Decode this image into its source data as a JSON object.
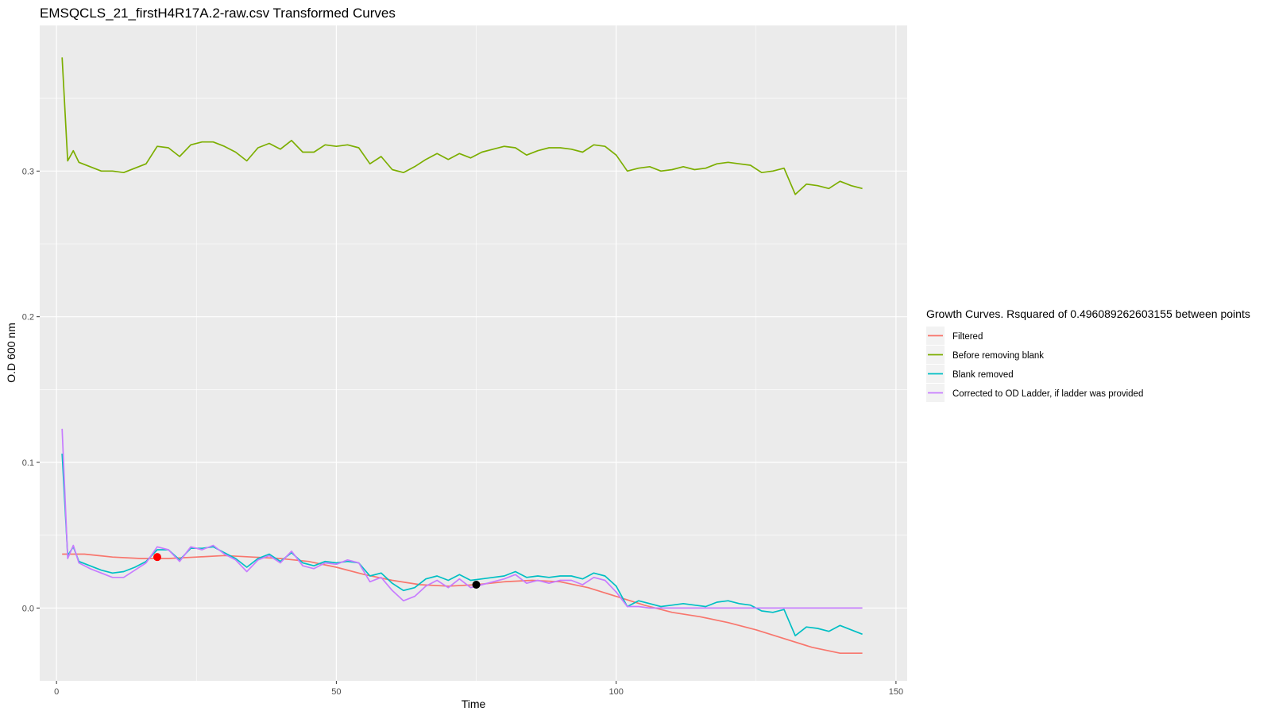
{
  "chart_data": {
    "type": "line",
    "title": "EMSQCLS_21_firstH4R17A.2-raw.csv Transformed Curves",
    "xlabel": "Time",
    "ylabel": "O.D 600 nm",
    "xlim": [
      -3,
      152
    ],
    "ylim": [
      -0.05,
      0.4
    ],
    "x_ticks": [
      0,
      50,
      100,
      150
    ],
    "x_tick_labels": [
      "0",
      "50",
      "100",
      "150"
    ],
    "y_ticks": [
      0.0,
      0.1,
      0.2,
      0.3
    ],
    "y_tick_labels": [
      "0.0",
      "0.1",
      "0.2",
      "0.3"
    ],
    "grid": true,
    "legend_position": "right",
    "legend_title": "Growth Curves. Rsquared of 0.496089262603155 between points",
    "series": [
      {
        "name": "Filtered",
        "color": "#F8766D",
        "x": [
          1,
          5,
          10,
          15,
          20,
          25,
          30,
          35,
          40,
          45,
          50,
          55,
          60,
          65,
          70,
          75,
          80,
          85,
          90,
          95,
          100,
          105,
          110,
          115,
          120,
          125,
          130,
          135,
          140,
          144
        ],
        "y": [
          0.037,
          0.037,
          0.035,
          0.034,
          0.034,
          0.035,
          0.036,
          0.035,
          0.034,
          0.032,
          0.028,
          0.023,
          0.019,
          0.016,
          0.015,
          0.016,
          0.018,
          0.019,
          0.018,
          0.014,
          0.008,
          0.002,
          -0.003,
          -0.006,
          -0.01,
          -0.015,
          -0.021,
          -0.027,
          -0.031,
          -0.031
        ]
      },
      {
        "name": "Before removing blank",
        "color": "#7CAE00",
        "x": [
          1,
          2,
          3,
          4,
          6,
          8,
          10,
          12,
          14,
          16,
          18,
          20,
          22,
          24,
          26,
          28,
          30,
          32,
          34,
          36,
          38,
          40,
          42,
          44,
          46,
          48,
          50,
          52,
          54,
          56,
          58,
          60,
          62,
          64,
          66,
          68,
          70,
          72,
          74,
          76,
          78,
          80,
          82,
          84,
          86,
          88,
          90,
          92,
          94,
          96,
          98,
          100,
          102,
          104,
          106,
          108,
          110,
          112,
          114,
          116,
          118,
          120,
          122,
          124,
          126,
          128,
          130,
          132,
          134,
          136,
          138,
          140,
          142,
          144
        ],
        "y": [
          0.378,
          0.307,
          0.314,
          0.306,
          0.303,
          0.3,
          0.3,
          0.299,
          0.302,
          0.305,
          0.317,
          0.316,
          0.31,
          0.318,
          0.32,
          0.32,
          0.317,
          0.313,
          0.307,
          0.316,
          0.319,
          0.315,
          0.321,
          0.313,
          0.313,
          0.318,
          0.317,
          0.318,
          0.316,
          0.305,
          0.31,
          0.301,
          0.299,
          0.303,
          0.308,
          0.312,
          0.308,
          0.312,
          0.309,
          0.313,
          0.315,
          0.317,
          0.316,
          0.311,
          0.314,
          0.316,
          0.316,
          0.315,
          0.313,
          0.318,
          0.317,
          0.311,
          0.3,
          0.302,
          0.303,
          0.3,
          0.301,
          0.303,
          0.301,
          0.302,
          0.305,
          0.306,
          0.305,
          0.304,
          0.299,
          0.3,
          0.302,
          0.284,
          0.291,
          0.29,
          0.288,
          0.293,
          0.29,
          0.288
        ]
      },
      {
        "name": "Blank removed",
        "color": "#00BFC4",
        "x": [
          1,
          2,
          3,
          4,
          6,
          8,
          10,
          12,
          14,
          16,
          18,
          20,
          22,
          24,
          26,
          28,
          30,
          32,
          34,
          36,
          38,
          40,
          42,
          44,
          46,
          48,
          50,
          52,
          54,
          56,
          58,
          60,
          62,
          64,
          66,
          68,
          70,
          72,
          74,
          76,
          78,
          80,
          82,
          84,
          86,
          88,
          90,
          92,
          94,
          96,
          98,
          100,
          102,
          104,
          106,
          108,
          110,
          112,
          114,
          116,
          118,
          120,
          122,
          124,
          126,
          128,
          130,
          132,
          134,
          136,
          138,
          140,
          142,
          144
        ],
        "y": [
          0.106,
          0.036,
          0.042,
          0.032,
          0.029,
          0.026,
          0.024,
          0.025,
          0.028,
          0.032,
          0.04,
          0.04,
          0.033,
          0.041,
          0.041,
          0.042,
          0.038,
          0.034,
          0.028,
          0.034,
          0.037,
          0.032,
          0.038,
          0.031,
          0.029,
          0.032,
          0.031,
          0.032,
          0.031,
          0.022,
          0.024,
          0.017,
          0.012,
          0.014,
          0.02,
          0.022,
          0.019,
          0.023,
          0.019,
          0.02,
          0.021,
          0.022,
          0.025,
          0.021,
          0.022,
          0.021,
          0.022,
          0.022,
          0.02,
          0.024,
          0.022,
          0.015,
          0.001,
          0.005,
          0.003,
          0.001,
          0.002,
          0.003,
          0.002,
          0.001,
          0.004,
          0.005,
          0.003,
          0.002,
          -0.002,
          -0.003,
          -0.001,
          -0.019,
          -0.013,
          -0.014,
          -0.016,
          -0.012,
          -0.015,
          -0.018
        ]
      },
      {
        "name": "Corrected to OD Ladder, if ladder was provided",
        "color": "#C77CFF",
        "x": [
          1,
          2,
          3,
          4,
          6,
          8,
          10,
          12,
          14,
          16,
          18,
          20,
          22,
          24,
          26,
          28,
          30,
          32,
          34,
          36,
          38,
          40,
          42,
          44,
          46,
          48,
          50,
          52,
          54,
          56,
          58,
          60,
          62,
          64,
          66,
          68,
          70,
          72,
          74,
          76,
          78,
          80,
          82,
          84,
          86,
          88,
          90,
          92,
          94,
          96,
          98,
          100,
          102,
          104,
          106,
          108,
          110,
          112,
          114,
          116,
          118,
          120,
          122,
          124,
          126,
          128,
          130,
          132,
          134,
          136,
          138,
          140,
          142,
          144
        ],
        "y": [
          0.123,
          0.034,
          0.043,
          0.031,
          0.027,
          0.024,
          0.021,
          0.021,
          0.026,
          0.031,
          0.042,
          0.04,
          0.032,
          0.042,
          0.04,
          0.043,
          0.037,
          0.033,
          0.025,
          0.033,
          0.036,
          0.031,
          0.039,
          0.029,
          0.027,
          0.031,
          0.03,
          0.033,
          0.031,
          0.018,
          0.021,
          0.012,
          0.005,
          0.008,
          0.015,
          0.019,
          0.014,
          0.02,
          0.014,
          0.016,
          0.018,
          0.02,
          0.023,
          0.017,
          0.019,
          0.017,
          0.019,
          0.019,
          0.016,
          0.021,
          0.019,
          0.011,
          0.001,
          0.001,
          0.0,
          0.0,
          0.0,
          0.0,
          0.0,
          0.0,
          0.0,
          0.0,
          0.0,
          0.0,
          0.0,
          0.0,
          0.0,
          0.0,
          0.0,
          0.0,
          0.0,
          0.0,
          0.0,
          0.0
        ]
      }
    ],
    "points": [
      {
        "x": 18,
        "y": 0.035,
        "color": "#FF0000"
      },
      {
        "x": 75,
        "y": 0.016,
        "color": "#000000"
      }
    ]
  }
}
